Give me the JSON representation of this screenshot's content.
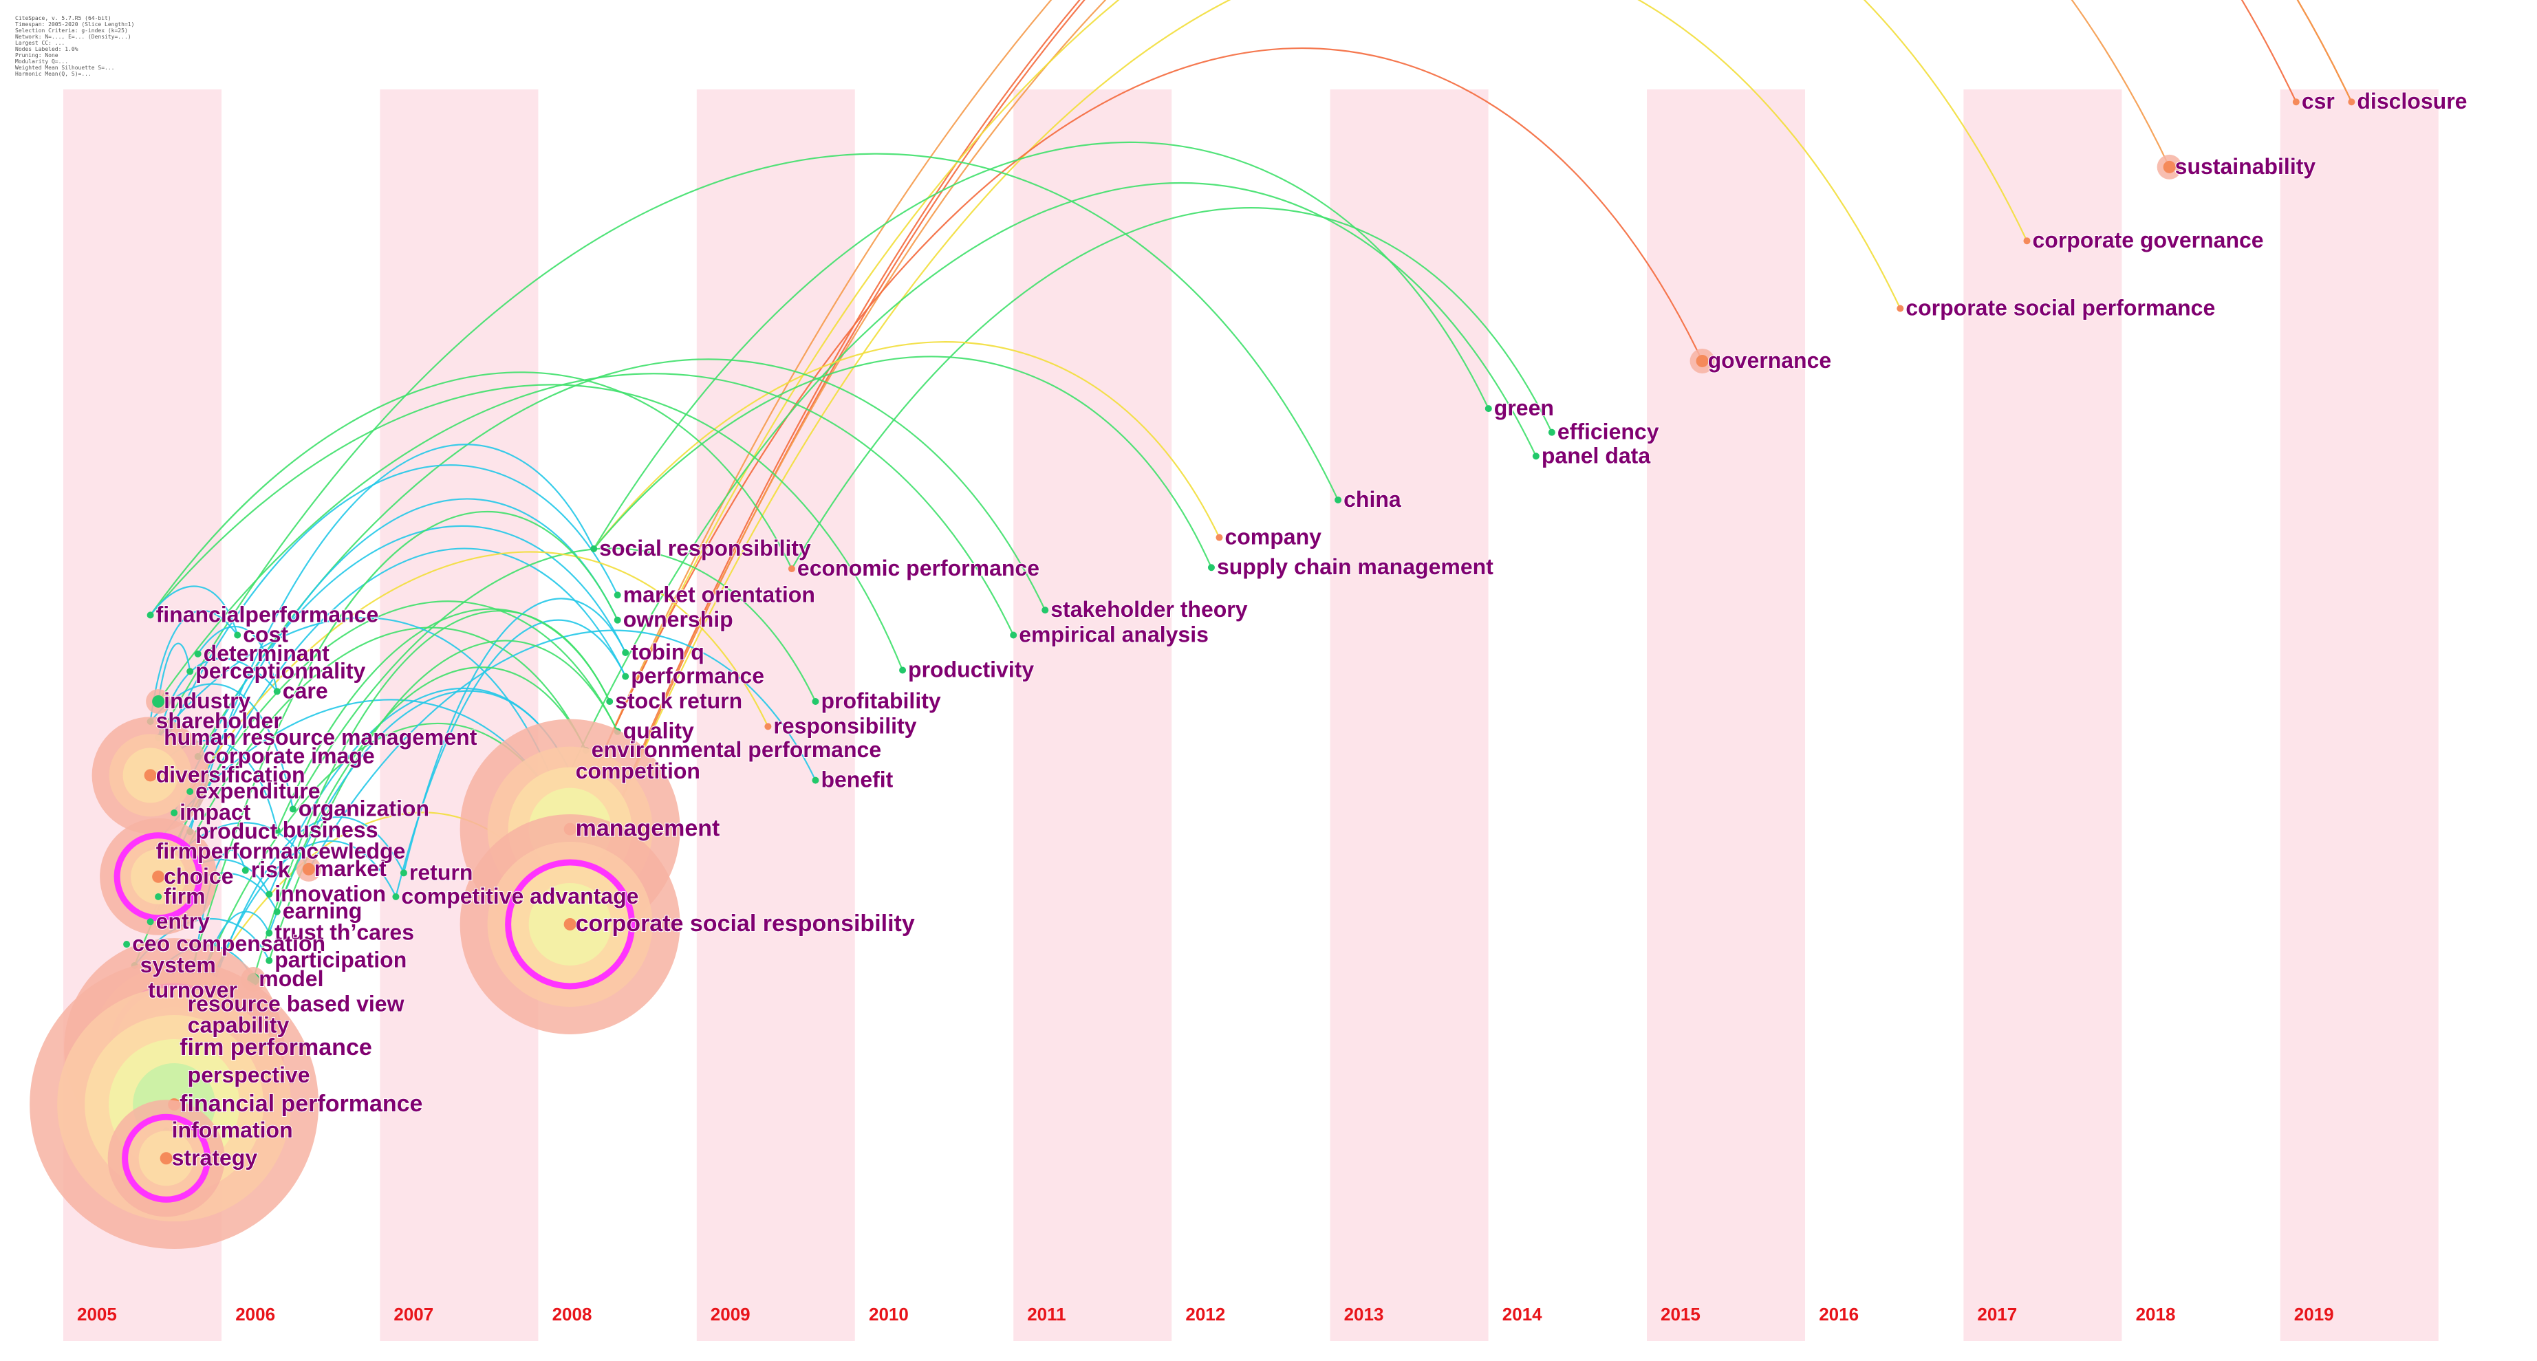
{
  "info_block": [
    "CiteSpace, v. 5.7.R5 (64-bit)",
    "Timespan: 2005-2020 (Slice Length=1)",
    "Selection Criteria: g-index (k=25)",
    "Network: N=..., E=... (Density=...)",
    "Largest CC: ...",
    "Nodes Labeled: 1.0%",
    "Pruning: None",
    "Modularity Q=...",
    "Weighted Mean Silhouette S=...",
    "Harmonic Mean(Q, S)=..."
  ],
  "colors": {
    "band": "#fde4ea",
    "year_label": "#e8141a",
    "node_label": "#800070",
    "link_cyan": "#22c8e8",
    "link_green": "#3ee06a",
    "link_yellow": "#f2de3a",
    "link_orange": "#f59a4a",
    "link_red": "#f4693c",
    "ring_outer": "#f4a894",
    "ring_magenta": "#ff33ff"
  },
  "timeline": {
    "years": [
      "2005",
      "2006",
      "2007",
      "2008",
      "2009",
      "2010",
      "2011",
      "2012",
      "2013",
      "2014",
      "2015",
      "2016",
      "2017",
      "2018",
      "2019"
    ]
  },
  "nodes": [
    {
      "id": "csr",
      "label": "csr",
      "year": 2019.1,
      "yl": 0.01,
      "size": 0,
      "tier": 4
    },
    {
      "id": "disclosure",
      "label": "disclosure",
      "year": 2019.45,
      "yl": 0.01,
      "size": 0,
      "tier": 4
    },
    {
      "id": "sustainability",
      "label": "sustainability",
      "year": 2018.3,
      "yl": 0.062,
      "size": 1,
      "tier": 4
    },
    {
      "id": "corporate_governance",
      "label": "corporate governance",
      "year": 2017.4,
      "yl": 0.121,
      "size": 0,
      "tier": 3
    },
    {
      "id": "corporate_social_performance",
      "label": "corporate social performance",
      "year": 2016.6,
      "yl": 0.175,
      "size": 0,
      "tier": 3
    },
    {
      "id": "governance",
      "label": "governance",
      "year": 2015.35,
      "yl": 0.217,
      "size": 1,
      "tier": 4
    },
    {
      "id": "green",
      "label": "green",
      "year": 2014.0,
      "yl": 0.255,
      "size": 0,
      "tier": 2
    },
    {
      "id": "efficiency",
      "label": "efficiency",
      "year": 2014.4,
      "yl": 0.274,
      "size": 0,
      "tier": 2
    },
    {
      "id": "panel_data",
      "label": "panel data",
      "year": 2014.3,
      "yl": 0.293,
      "size": 0,
      "tier": 2
    },
    {
      "id": "china",
      "label": "china",
      "year": 2013.05,
      "yl": 0.328,
      "size": 0,
      "tier": 2
    },
    {
      "id": "company",
      "label": "company",
      "year": 2012.3,
      "yl": 0.358,
      "size": 0,
      "tier": 3
    },
    {
      "id": "supply_chain_management",
      "label": "supply chain management",
      "year": 2012.25,
      "yl": 0.382,
      "size": 0,
      "tier": 2
    },
    {
      "id": "social_responsibility",
      "label": "social responsibility",
      "year": 2008.35,
      "yl": 0.367,
      "size": 0,
      "tier": 1
    },
    {
      "id": "economic_performance",
      "label": "economic performance",
      "year": 2009.6,
      "yl": 0.383,
      "size": 0,
      "tier": 3
    },
    {
      "id": "market_orientation",
      "label": "market orientation",
      "year": 2008.5,
      "yl": 0.404,
      "size": 0,
      "tier": 1
    },
    {
      "id": "stakeholder_theory",
      "label": "stakeholder theory",
      "year": 2011.2,
      "yl": 0.416,
      "size": 0,
      "tier": 2
    },
    {
      "id": "ownership",
      "label": "ownership",
      "year": 2008.5,
      "yl": 0.424,
      "size": 0,
      "tier": 1
    },
    {
      "id": "empirical_analysis",
      "label": "empirical analysis",
      "year": 2011.0,
      "yl": 0.436,
      "size": 0,
      "tier": 2
    },
    {
      "id": "tobin_q",
      "label": "tobin q",
      "year": 2008.55,
      "yl": 0.45,
      "size": 0,
      "tier": 1
    },
    {
      "id": "performance",
      "label": "performance",
      "year": 2008.55,
      "yl": 0.469,
      "size": 0,
      "tier": 1
    },
    {
      "id": "productivity",
      "label": "productivity",
      "year": 2010.3,
      "yl": 0.464,
      "size": 0,
      "tier": 2
    },
    {
      "id": "stock_return",
      "label": "stock return",
      "year": 2008.45,
      "yl": 0.489,
      "size": 0,
      "tier": 1
    },
    {
      "id": "profitability",
      "label": "profitability",
      "year": 2009.75,
      "yl": 0.489,
      "size": 0,
      "tier": 2
    },
    {
      "id": "responsibility",
      "label": "responsibility",
      "year": 2009.45,
      "yl": 0.509,
      "size": 0,
      "tier": 3
    },
    {
      "id": "quality",
      "label": "quality",
      "year": 2008.5,
      "yl": 0.513,
      "size": 0,
      "tier": 1
    },
    {
      "id": "environmental_performance",
      "label": "environmental performance",
      "year": 2008.3,
      "yl": 0.528,
      "size": 0,
      "tier": 2
    },
    {
      "id": "competition",
      "label": "competition",
      "year": 2008.2,
      "yl": 0.545,
      "size": 0,
      "tier": 1
    },
    {
      "id": "benefit",
      "label": "benefit",
      "year": 2009.75,
      "yl": 0.552,
      "size": 0,
      "tier": 2
    },
    {
      "id": "management",
      "label": "management",
      "year": 2008.2,
      "yl": 0.591,
      "size": 3,
      "tier": 4
    },
    {
      "id": "corporate_social_responsibility",
      "label": "corporate social responsibility",
      "year": 2008.2,
      "yl": 0.667,
      "size": 3,
      "tier": 5
    },
    {
      "id": "financialperformance",
      "label": "financialperformance",
      "year": 2005.55,
      "yl": 0.42,
      "size": 0,
      "tier": 0
    },
    {
      "id": "cost",
      "label": "cost",
      "year": 2006.1,
      "yl": 0.436,
      "size": 0,
      "tier": 0
    },
    {
      "id": "determinant",
      "label": "determinant",
      "year": 2005.85,
      "yl": 0.451,
      "size": 0,
      "tier": 0
    },
    {
      "id": "perceptionnality",
      "label": "perceptionnality",
      "year": 2005.8,
      "yl": 0.465,
      "size": 0,
      "tier": 0
    },
    {
      "id": "care",
      "label": "care",
      "year": 2006.35,
      "yl": 0.481,
      "size": 0,
      "tier": 0
    },
    {
      "id": "industry",
      "label": "industry",
      "year": 2005.6,
      "yl": 0.489,
      "size": 1,
      "tier": 0
    },
    {
      "id": "shareholder",
      "label": "shareholder",
      "year": 2005.55,
      "yl": 0.505,
      "size": 0,
      "tier": 0
    },
    {
      "id": "human_resource_management",
      "label": "human resource management",
      "year": 2005.6,
      "yl": 0.518,
      "size": 0,
      "tier": 0
    },
    {
      "id": "corporate_image",
      "label": "corporate image",
      "year": 2005.85,
      "yl": 0.533,
      "size": 0,
      "tier": 0
    },
    {
      "id": "diversification",
      "label": "diversification",
      "year": 2005.55,
      "yl": 0.548,
      "size": 2,
      "tier": 3
    },
    {
      "id": "expenditure",
      "label": "expenditure",
      "year": 2005.8,
      "yl": 0.561,
      "size": 0,
      "tier": 0
    },
    {
      "id": "organization",
      "label": "organization",
      "year": 2006.45,
      "yl": 0.575,
      "size": 0,
      "tier": 0
    },
    {
      "id": "impact",
      "label": "impact",
      "year": 2005.7,
      "yl": 0.578,
      "size": 0,
      "tier": 0
    },
    {
      "id": "business",
      "label": "business",
      "year": 2006.35,
      "yl": 0.592,
      "size": 0,
      "tier": 0
    },
    {
      "id": "product",
      "label": "product",
      "year": 2005.8,
      "yl": 0.593,
      "size": 0,
      "tier": 0
    },
    {
      "id": "firmperformancewledge",
      "label": "firmperformancewledge",
      "year": 2005.55,
      "yl": 0.609,
      "size": 0,
      "tier": 0
    },
    {
      "id": "choice",
      "label": "choice",
      "year": 2005.6,
      "yl": 0.629,
      "size": 2,
      "tier": 5
    },
    {
      "id": "risk",
      "label": "risk",
      "year": 2006.15,
      "yl": 0.624,
      "size": 0,
      "tier": 0
    },
    {
      "id": "market",
      "label": "market",
      "year": 2006.55,
      "yl": 0.623,
      "size": 1,
      "tier": 4
    },
    {
      "id": "return",
      "label": "return",
      "year": 2007.15,
      "yl": 0.626,
      "size": 0,
      "tier": 0
    },
    {
      "id": "firm",
      "label": "firm",
      "year": 2005.6,
      "yl": 0.645,
      "size": 0,
      "tier": 0
    },
    {
      "id": "innovation",
      "label": "innovation",
      "year": 2006.3,
      "yl": 0.643,
      "size": 0,
      "tier": 0
    },
    {
      "id": "competitive_advantage",
      "label": "competitive advantage",
      "year": 2007.1,
      "yl": 0.645,
      "size": 0,
      "tier": 0
    },
    {
      "id": "earning",
      "label": "earning",
      "year": 2006.35,
      "yl": 0.657,
      "size": 0,
      "tier": 0
    },
    {
      "id": "entry",
      "label": "entry",
      "year": 2005.55,
      "yl": 0.665,
      "size": 0,
      "tier": 0
    },
    {
      "id": "trust_thcares",
      "label": "trust th’cares",
      "year": 2006.3,
      "yl": 0.674,
      "size": 0,
      "tier": 0
    },
    {
      "id": "ceo_compensation",
      "label": "ceo compensation",
      "year": 2005.4,
      "yl": 0.683,
      "size": 0,
      "tier": 0
    },
    {
      "id": "system",
      "label": "system",
      "year": 2005.45,
      "yl": 0.7,
      "size": 0,
      "tier": 0
    },
    {
      "id": "participation",
      "label": "participation",
      "year": 2006.3,
      "yl": 0.696,
      "size": 0,
      "tier": 0
    },
    {
      "id": "model",
      "label": "model",
      "year": 2006.2,
      "yl": 0.711,
      "size": 1,
      "tier": 0
    },
    {
      "id": "turnover",
      "label": "turnover",
      "year": 2005.5,
      "yl": 0.72,
      "size": 0,
      "tier": 0
    },
    {
      "id": "resource_based_view",
      "label": "resource based view",
      "year": 2005.75,
      "yl": 0.731,
      "size": 0,
      "tier": 0
    },
    {
      "id": "capability",
      "label": "capability",
      "year": 2005.75,
      "yl": 0.748,
      "size": 0,
      "tier": 0
    },
    {
      "id": "firm_performance",
      "label": "firm performance",
      "year": 2005.7,
      "yl": 0.766,
      "size": 3,
      "tier": 5
    },
    {
      "id": "perspective",
      "label": "perspective",
      "year": 2005.75,
      "yl": 0.788,
      "size": 0,
      "tier": 0
    },
    {
      "id": "financial_performance",
      "label": "financial performance",
      "year": 2005.7,
      "yl": 0.811,
      "size": 4,
      "tier": 4
    },
    {
      "id": "information",
      "label": "information",
      "year": 2005.65,
      "yl": 0.832,
      "size": 0,
      "tier": 0
    },
    {
      "id": "strategy",
      "label": "strategy",
      "year": 2005.65,
      "yl": 0.854,
      "size": 2,
      "tier": 5
    }
  ],
  "links": [
    [
      "corporate_social_responsibility",
      "csr",
      "link_red"
    ],
    [
      "corporate_social_responsibility",
      "disclosure",
      "link_red"
    ],
    [
      "management",
      "disclosure",
      "link_orange"
    ],
    [
      "corporate_social_responsibility",
      "sustainability",
      "link_orange"
    ],
    [
      "management",
      "corporate_governance",
      "link_yellow"
    ],
    [
      "corporate_social_responsibility",
      "corporate_social_performance",
      "link_yellow"
    ],
    [
      "management",
      "governance",
      "link_red"
    ],
    [
      "social_responsibility",
      "green",
      "link_green"
    ],
    [
      "economic_performance",
      "efficiency",
      "link_green"
    ],
    [
      "competition",
      "panel_data",
      "link_green"
    ],
    [
      "human_resource_management",
      "china",
      "link_green"
    ],
    [
      "social_responsibility",
      "company",
      "link_yellow"
    ],
    [
      "social_responsibility",
      "supply_chain_management",
      "link_green"
    ],
    [
      "corporate_image",
      "stakeholder_theory",
      "link_green"
    ],
    [
      "industry",
      "empirical_analysis",
      "link_green"
    ],
    [
      "financialperformance",
      "productivity",
      "link_green"
    ],
    [
      "product",
      "social_responsibility",
      "link_cyan"
    ],
    [
      "diversification",
      "market_orientation",
      "link_cyan"
    ],
    [
      "firm",
      "ownership",
      "link_cyan"
    ],
    [
      "impact",
      "tobin_q",
      "link_cyan"
    ],
    [
      "entry",
      "performance",
      "link_cyan"
    ],
    [
      "business",
      "stock_return",
      "link_green"
    ],
    [
      "choice",
      "quality",
      "link_green"
    ],
    [
      "system",
      "environmental_performance",
      "link_green"
    ],
    [
      "innovation",
      "competition",
      "link_cyan"
    ],
    [
      "firm_performance",
      "management",
      "link_green"
    ],
    [
      "capability",
      "corporate_social_responsibility",
      "link_yellow"
    ],
    [
      "financialperformance",
      "economic_performance",
      "link_green"
    ],
    [
      "organization",
      "profitability",
      "link_green"
    ],
    [
      "expenditure",
      "responsibility",
      "link_yellow"
    ],
    [
      "market",
      "benefit",
      "link_cyan"
    ],
    [
      "return",
      "tobin_q",
      "link_cyan"
    ],
    [
      "competitive_advantage",
      "performance",
      "link_cyan"
    ],
    [
      "firmperformancewledge",
      "management",
      "link_cyan"
    ],
    [
      "human_resource_management",
      "management",
      "link_cyan"
    ],
    [
      "financialperformance",
      "cost",
      "link_cyan"
    ],
    [
      "determinant",
      "care",
      "link_cyan"
    ],
    [
      "shareholder",
      "organization",
      "link_cyan"
    ],
    [
      "diversification",
      "business",
      "link_cyan"
    ],
    [
      "choice",
      "market",
      "link_cyan"
    ],
    [
      "firm",
      "innovation",
      "link_cyan"
    ],
    [
      "entry",
      "earning",
      "link_cyan"
    ],
    [
      "system",
      "participation",
      "link_cyan"
    ],
    [
      "turnover",
      "model",
      "link_cyan"
    ],
    [
      "perspective",
      "risk",
      "link_cyan"
    ],
    [
      "strategy",
      "return",
      "link_cyan"
    ],
    [
      "information",
      "competitive_advantage",
      "link_cyan"
    ],
    [
      "financial_performance",
      "trust_thcares",
      "link_cyan"
    ],
    [
      "industry",
      "perceptionnality",
      "link_cyan"
    ],
    [
      "cost",
      "shareholder",
      "link_cyan"
    ],
    [
      "care",
      "human_resource_management",
      "link_cyan"
    ],
    [
      "resource_based_view",
      "ownership",
      "link_green"
    ],
    [
      "model",
      "stock_return",
      "link_green"
    ],
    [
      "participation",
      "quality",
      "link_green"
    ],
    [
      "trust_thcares",
      "competition",
      "link_cyan"
    ],
    [
      "earning",
      "environmental_performance",
      "link_green"
    ]
  ]
}
